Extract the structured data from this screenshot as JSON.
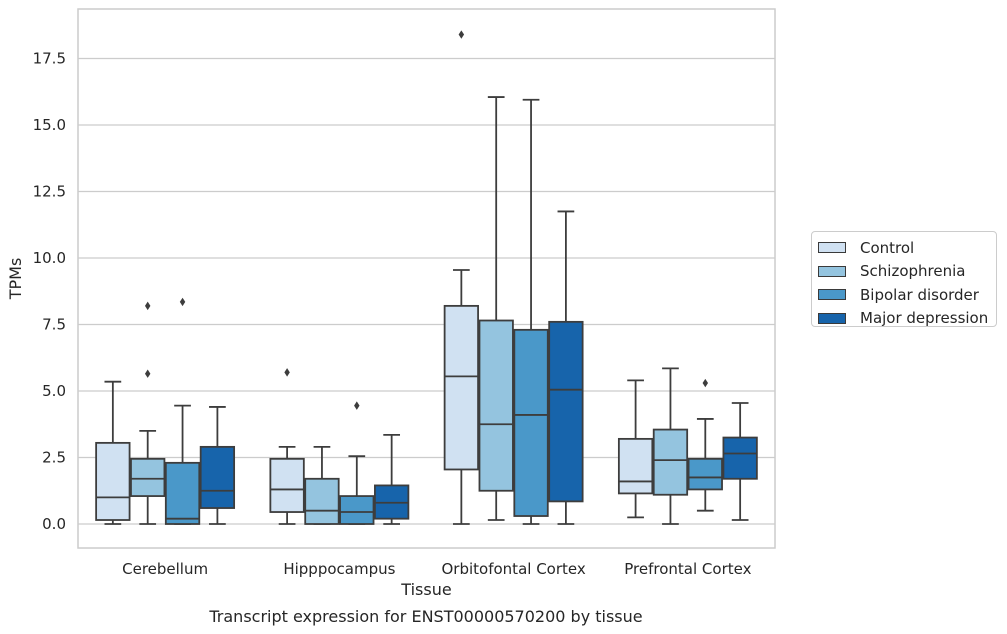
{
  "chart_data": {
    "type": "box",
    "caption": "Transcript expression for ENST00000570200 by tissue",
    "xlabel": "Tissue",
    "ylabel": "TPMs",
    "ylim": [
      -0.9,
      19.3
    ],
    "yticks": [
      "0.0",
      "2.5",
      "5.0",
      "7.5",
      "10.0",
      "12.5",
      "15.0",
      "17.5"
    ],
    "ytick_values": [
      0,
      2.5,
      5,
      7.5,
      10,
      12.5,
      15,
      17.5
    ],
    "grid": true,
    "legend_position": "right",
    "categories": [
      "Cerebellum",
      "Hipppocampus",
      "Orbitofontal Cortex",
      "Prefrontal Cortex"
    ],
    "series": [
      {
        "name": "Control",
        "color": "#d0e1f2",
        "boxes": [
          {
            "whislo": 0.0,
            "q1": 0.15,
            "med": 1.0,
            "q3": 3.05,
            "whishi": 5.35,
            "fliers": []
          },
          {
            "whislo": 0.0,
            "q1": 0.45,
            "med": 1.3,
            "q3": 2.45,
            "whishi": 2.9,
            "fliers": [
              5.7
            ]
          },
          {
            "whislo": 0.0,
            "q1": 2.05,
            "med": 5.55,
            "q3": 8.2,
            "whishi": 9.55,
            "fliers": [
              18.4
            ]
          },
          {
            "whislo": 0.25,
            "q1": 1.15,
            "med": 1.6,
            "q3": 3.2,
            "whishi": 5.4,
            "fliers": []
          }
        ]
      },
      {
        "name": "Schizophrenia",
        "color": "#94c4df",
        "boxes": [
          {
            "whislo": 0.0,
            "q1": 1.05,
            "med": 1.7,
            "q3": 2.45,
            "whishi": 3.5,
            "fliers": [
              5.65,
              8.2
            ]
          },
          {
            "whislo": 0.0,
            "q1": 0.0,
            "med": 0.5,
            "q3": 1.7,
            "whishi": 2.9,
            "fliers": []
          },
          {
            "whislo": 0.15,
            "q1": 1.25,
            "med": 3.75,
            "q3": 7.65,
            "whishi": 16.05,
            "fliers": []
          },
          {
            "whislo": 0.0,
            "q1": 1.1,
            "med": 2.4,
            "q3": 3.55,
            "whishi": 5.85,
            "fliers": []
          }
        ]
      },
      {
        "name": "Bipolar disorder",
        "color": "#4a98c9",
        "boxes": [
          {
            "whislo": 0.0,
            "q1": 0.0,
            "med": 0.2,
            "q3": 2.3,
            "whishi": 4.45,
            "fliers": [
              8.35
            ]
          },
          {
            "whislo": 0.0,
            "q1": 0.0,
            "med": 0.45,
            "q3": 1.05,
            "whishi": 2.55,
            "fliers": [
              4.45
            ]
          },
          {
            "whislo": 0.0,
            "q1": 0.3,
            "med": 4.1,
            "q3": 7.3,
            "whishi": 15.95,
            "fliers": []
          },
          {
            "whislo": 0.5,
            "q1": 1.3,
            "med": 1.75,
            "q3": 2.45,
            "whishi": 3.95,
            "fliers": [
              5.3
            ]
          }
        ]
      },
      {
        "name": "Major depression",
        "color": "#1764ab",
        "boxes": [
          {
            "whislo": 0.0,
            "q1": 0.6,
            "med": 1.25,
            "q3": 2.9,
            "whishi": 4.4,
            "fliers": []
          },
          {
            "whislo": 0.0,
            "q1": 0.2,
            "med": 0.8,
            "q3": 1.45,
            "whishi": 3.35,
            "fliers": []
          },
          {
            "whislo": 0.0,
            "q1": 0.85,
            "med": 5.05,
            "q3": 7.6,
            "whishi": 11.75,
            "fliers": []
          },
          {
            "whislo": 0.15,
            "q1": 1.7,
            "med": 2.65,
            "q3": 3.25,
            "whishi": 4.55,
            "fliers": []
          }
        ]
      }
    ]
  }
}
